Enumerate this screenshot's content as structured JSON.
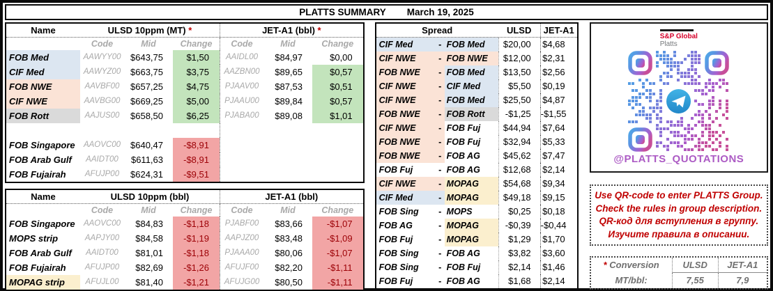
{
  "title_bar": {
    "title": "PLATTS SUMMARY",
    "date": "March 19, 2025"
  },
  "colors": {
    "highlight_blue": "#dce6f1",
    "highlight_peach": "#fbe3d6",
    "highlight_gray": "#dadada",
    "highlight_yellow": "#fbefce",
    "change_up_green": "#c3e4bc",
    "change_down_pink": "#f2a5a5",
    "change_down_text": "#9c0006",
    "notice_red": "#c00000",
    "sp_global_red": "#d6002a",
    "handle_purple": "#ac5bc4"
  },
  "table_mt": {
    "name_header": "Name",
    "section1": "ULSD 10ppm (MT)",
    "section1_asterisk": "*",
    "section2": "JET-A1 (bbl)",
    "section2_asterisk": "*",
    "subheaders": {
      "code": "Code",
      "mid": "Mid",
      "change": "Change"
    },
    "rows_top": [
      {
        "name": "FOB Med",
        "name_bg": "blue",
        "code1": "AAWYY00",
        "mid1": "$643,75",
        "chg1": "$1,50",
        "chg1_bg": "up",
        "code2": "AAIDL00",
        "mid2": "$84,97",
        "chg2": "$0,00",
        "chg2_bg": ""
      },
      {
        "name": "CIF Med",
        "name_bg": "blue",
        "code1": "AAWYZ00",
        "mid1": "$663,75",
        "chg1": "$3,75",
        "chg1_bg": "up",
        "code2": "AAZBN00",
        "mid2": "$89,65",
        "chg2": "$0,57",
        "chg2_bg": "up"
      },
      {
        "name": "FOB NWE",
        "name_bg": "peach",
        "code1": "AAVBF00",
        "mid1": "$657,25",
        "chg1": "$4,75",
        "chg1_bg": "up",
        "code2": "PJAAV00",
        "mid2": "$87,53",
        "chg2": "$0,51",
        "chg2_bg": "up"
      },
      {
        "name": "CIF NWE",
        "name_bg": "peach",
        "code1": "AAVBG00",
        "mid1": "$669,25",
        "chg1": "$5,00",
        "chg1_bg": "up",
        "code2": "PJAAU00",
        "mid2": "$89,84",
        "chg2": "$0,57",
        "chg2_bg": "up"
      },
      {
        "name": "FOB Rott",
        "name_bg": "gray",
        "code1": "AAJUS00",
        "mid1": "$658,50",
        "chg1": "$6,25",
        "chg1_bg": "up",
        "code2": "PJABA00",
        "mid2": "$89,08",
        "chg2": "$1,01",
        "chg2_bg": "up"
      }
    ],
    "rows_bottom": [
      {
        "name": "FOB Singapore",
        "name_bg": "",
        "code1": "AAOVC00",
        "mid1": "$640,47",
        "chg1": "-$8,91",
        "chg1_bg": "down",
        "code2": "",
        "mid2": "",
        "chg2": "",
        "chg2_bg": ""
      },
      {
        "name": "FOB Arab Gulf",
        "name_bg": "",
        "code1": "AAIDT00",
        "mid1": "$611,63",
        "chg1": "-$8,91",
        "chg1_bg": "down",
        "code2": "",
        "mid2": "",
        "chg2": "",
        "chg2_bg": ""
      },
      {
        "name": "FOB Fujairah",
        "name_bg": "",
        "code1": "AFUJP00",
        "mid1": "$624,31",
        "chg1": "-$9,51",
        "chg1_bg": "down",
        "code2": "",
        "mid2": "",
        "chg2": "",
        "chg2_bg": ""
      }
    ]
  },
  "table_bbl": {
    "name_header": "Name",
    "section1": "ULSD 10ppm (bbl)",
    "section2": "JET-A1 (bbl)",
    "subheaders": {
      "code": "Code",
      "mid": "Mid",
      "change": "Change"
    },
    "rows": [
      {
        "name": "FOB Singapore",
        "name_bg": "",
        "code1": "AAOVC00",
        "mid1": "$84,83",
        "chg1": "-$1,18",
        "chg1_bg": "down",
        "code2": "PJABF00",
        "mid2": "$83,66",
        "chg2": "-$1,07",
        "chg2_bg": "down"
      },
      {
        "name": "MOPS strip",
        "name_bg": "",
        "code1": "AAPJY00",
        "mid1": "$84,58",
        "chg1": "-$1,19",
        "chg1_bg": "down",
        "code2": "AAPJZ00",
        "mid2": "$83,48",
        "chg2": "-$1,09",
        "chg2_bg": "down"
      },
      {
        "name": "FOB Arab Gulf",
        "name_bg": "",
        "code1": "AAIDT00",
        "mid1": "$81,01",
        "chg1": "-$1,18",
        "chg1_bg": "down",
        "code2": "PJAAA00",
        "mid2": "$80,06",
        "chg2": "-$1,07",
        "chg2_bg": "down"
      },
      {
        "name": "FOB Fujairah",
        "name_bg": "",
        "code1": "AFUJP00",
        "mid1": "$82,69",
        "chg1": "-$1,26",
        "chg1_bg": "down",
        "code2": "AFUJF00",
        "mid2": "$82,20",
        "chg2": "-$1,11",
        "chg2_bg": "down"
      },
      {
        "name": "MOPAG strip",
        "name_bg": "yellow",
        "code1": "AFUJL00",
        "mid1": "$81,40",
        "chg1": "-$1,21",
        "chg1_bg": "down",
        "code2": "AFUJG00",
        "mid2": "$80,50",
        "chg2": "-$1,11",
        "chg2_bg": "down"
      }
    ]
  },
  "spread": {
    "header": "Spread",
    "col_ulsd": "ULSD",
    "col_jet": "JET-A1",
    "dash": "-",
    "rows": [
      {
        "a": "CIF Med",
        "a_bg": "blue",
        "b": "FOB Med",
        "b_bg": "blue",
        "ulsd": "$20,00",
        "jet": "$4,68"
      },
      {
        "a": "CIF NWE",
        "a_bg": "peach",
        "b": "FOB NWE",
        "b_bg": "peach",
        "ulsd": "$12,00",
        "jet": "$2,31"
      },
      {
        "a": "FOB NWE",
        "a_bg": "peach",
        "b": "FOB Med",
        "b_bg": "blue",
        "ulsd": "$13,50",
        "jet": "$2,56"
      },
      {
        "a": "CIF NWE",
        "a_bg": "peach",
        "b": "CIF Med",
        "b_bg": "blue",
        "ulsd": "$5,50",
        "jet": "$0,19"
      },
      {
        "a": "CIF NWE",
        "a_bg": "peach",
        "b": "FOB Med",
        "b_bg": "blue",
        "ulsd": "$25,50",
        "jet": "$4,87"
      },
      {
        "a": "FOB NWE",
        "a_bg": "peach",
        "b": "FOB Rott",
        "b_bg": "gray",
        "ulsd": "-$1,25",
        "jet": "-$1,55"
      },
      {
        "a": "CIF NWE",
        "a_bg": "peach",
        "b": "FOB Fuj",
        "b_bg": "",
        "ulsd": "$44,94",
        "jet": "$7,64"
      },
      {
        "a": "FOB NWE",
        "a_bg": "peach",
        "b": "FOB Fuj",
        "b_bg": "",
        "ulsd": "$32,94",
        "jet": "$5,33"
      },
      {
        "a": "FOB NWE",
        "a_bg": "peach",
        "b": "FOB AG",
        "b_bg": "",
        "ulsd": "$45,62",
        "jet": "$7,47"
      },
      {
        "a": "FOB Fuj",
        "a_bg": "",
        "b": "FOB AG",
        "b_bg": "",
        "ulsd": "$12,68",
        "jet": "$2,14"
      },
      {
        "a": "CIF NWE",
        "a_bg": "peach",
        "b": "MOPAG",
        "b_bg": "yellow",
        "ulsd": "$54,68",
        "jet": "$9,34"
      },
      {
        "a": "CIF Med",
        "a_bg": "blue",
        "b": "MOPAG",
        "b_bg": "yellow",
        "ulsd": "$49,18",
        "jet": "$9,15"
      },
      {
        "a": "FOB Sing",
        "a_bg": "",
        "b": "MOPS",
        "b_bg": "",
        "ulsd": "$0,25",
        "jet": "$0,18"
      },
      {
        "a": "FOB AG",
        "a_bg": "",
        "b": "MOPAG",
        "b_bg": "yellow",
        "ulsd": "-$0,39",
        "jet": "-$0,44"
      },
      {
        "a": "FOB Fuj",
        "a_bg": "",
        "b": "MOPAG",
        "b_bg": "yellow",
        "ulsd": "$1,29",
        "jet": "$1,70"
      },
      {
        "a": "FOB Sing",
        "a_bg": "",
        "b": "FOB AG",
        "b_bg": "",
        "ulsd": "$3,82",
        "jet": "$3,60"
      },
      {
        "a": "FOB Sing",
        "a_bg": "",
        "b": "FOB Fuj",
        "b_bg": "",
        "ulsd": "$2,14",
        "jet": "$1,46"
      },
      {
        "a": "FOB Fuj",
        "a_bg": "",
        "b": "FOB AG",
        "b_bg": "",
        "ulsd": "$1,68",
        "jet": "$2,14"
      }
    ]
  },
  "qr_panel": {
    "brand_top": "S&P Global",
    "brand_bottom": "Platts",
    "handle": "@PLATTS_QUOTATIONS"
  },
  "notice": {
    "lines": [
      "Use QR-code to enter PLATTS Group.",
      "Check the rules in group description.",
      "QR-код для вступления в группу.",
      "Изучите правила в описании."
    ]
  },
  "conversion": {
    "asterisk": "*",
    "label": "Conversion",
    "row_label": "MT/bbl:",
    "col_ulsd": "ULSD",
    "col_jet": "JET-A1",
    "ulsd_value": "7,55",
    "jet_value": "7,9"
  }
}
